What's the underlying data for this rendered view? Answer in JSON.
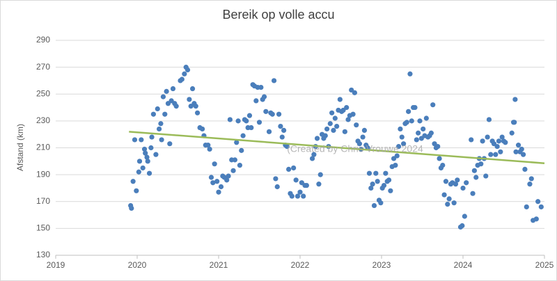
{
  "chart_data": {
    "type": "scatter",
    "title": "Bereik op volle accu",
    "ylabel": "Afstand (km)",
    "watermark": "(Created by Chris Vrouwe 2024",
    "xlim": [
      2019,
      2025
    ],
    "xticks": [
      2019,
      2020,
      2021,
      2022,
      2023,
      2024,
      2025
    ],
    "ylim": [
      130,
      290
    ],
    "yticks": [
      130,
      150,
      170,
      190,
      210,
      230,
      250,
      270,
      290
    ],
    "grid": true,
    "series": [
      {
        "name": "Afstand",
        "color": "#4a7ebb",
        "x": [
          2019.92,
          2019.93,
          2019.95,
          2019.97,
          2019.99,
          2020.02,
          2020.03,
          2020.05,
          2020.07,
          2020.09,
          2020.1,
          2020.12,
          2020.13,
          2020.15,
          2020.17,
          2020.18,
          2020.2,
          2020.23,
          2020.25,
          2020.27,
          2020.29,
          2020.3,
          2020.32,
          2020.34,
          2020.36,
          2020.38,
          2020.4,
          2020.42,
          2020.44,
          2020.46,
          2020.48,
          2020.53,
          2020.55,
          2020.58,
          2020.6,
          2020.62,
          2020.64,
          2020.66,
          2020.68,
          2020.7,
          2020.72,
          2020.74,
          2020.77,
          2020.8,
          2020.82,
          2020.84,
          2020.87,
          2020.89,
          2020.91,
          2020.93,
          2020.95,
          2020.98,
          2021.0,
          2021.03,
          2021.05,
          2021.07,
          2021.1,
          2021.12,
          2021.14,
          2021.16,
          2021.18,
          2021.2,
          2021.22,
          2021.24,
          2021.26,
          2021.28,
          2021.3,
          2021.32,
          2021.34,
          2021.36,
          2021.38,
          2021.4,
          2021.42,
          2021.44,
          2021.46,
          2021.48,
          2021.5,
          2021.52,
          2021.54,
          2021.56,
          2021.58,
          2021.62,
          2021.64,
          2021.66,
          2021.68,
          2021.7,
          2021.72,
          2021.74,
          2021.76,
          2021.78,
          2021.8,
          2021.82,
          2021.84,
          2021.86,
          2021.88,
          2021.9,
          2021.92,
          2021.95,
          2021.97,
          2022.0,
          2022.02,
          2022.04,
          2022.06,
          2022.08,
          2022.15,
          2022.17,
          2022.19,
          2022.21,
          2022.23,
          2022.25,
          2022.27,
          2022.29,
          2022.31,
          2022.33,
          2022.35,
          2022.37,
          2022.39,
          2022.41,
          2022.43,
          2022.45,
          2022.47,
          2022.49,
          2022.51,
          2022.53,
          2022.55,
          2022.57,
          2022.59,
          2022.61,
          2022.63,
          2022.65,
          2022.67,
          2022.69,
          2022.71,
          2022.73,
          2022.75,
          2022.77,
          2022.79,
          2022.81,
          2022.83,
          2022.85,
          2022.87,
          2022.89,
          2022.91,
          2022.93,
          2022.95,
          2022.97,
          2022.99,
          2023.01,
          2023.03,
          2023.05,
          2023.07,
          2023.09,
          2023.11,
          2023.13,
          2023.15,
          2023.17,
          2023.19,
          2023.21,
          2023.23,
          2023.25,
          2023.27,
          2023.29,
          2023.31,
          2023.33,
          2023.35,
          2023.37,
          2023.39,
          2023.41,
          2023.43,
          2023.45,
          2023.47,
          2023.49,
          2023.51,
          2023.53,
          2023.55,
          2023.57,
          2023.59,
          2023.61,
          2023.63,
          2023.65,
          2023.67,
          2023.69,
          2023.71,
          2023.73,
          2023.75,
          2023.77,
          2023.79,
          2023.81,
          2023.83,
          2023.85,
          2023.87,
          2023.89,
          2023.91,
          2023.93,
          2023.97,
          2023.99,
          2024.0,
          2024.02,
          2024.04,
          2024.1,
          2024.12,
          2024.14,
          2024.16,
          2024.18,
          2024.2,
          2024.22,
          2024.24,
          2024.26,
          2024.28,
          2024.3,
          2024.32,
          2024.34,
          2024.36,
          2024.38,
          2024.4,
          2024.42,
          2024.44,
          2024.46,
          2024.48,
          2024.5,
          2024.52,
          2024.6,
          2024.62,
          2024.63,
          2024.64,
          2024.65,
          2024.68,
          2024.7,
          2024.72,
          2024.74,
          2024.76,
          2024.78,
          2024.82,
          2024.84,
          2024.86,
          2024.9,
          2024.92,
          2024.96
        ],
        "values": [
          167,
          165,
          185,
          216,
          178,
          192,
          200,
          216,
          195,
          209,
          206,
          203,
          200,
          191,
          210,
          218,
          235,
          205,
          239,
          224,
          228,
          216,
          248,
          235,
          252,
          243,
          213,
          245,
          254,
          243,
          241,
          260,
          261,
          265,
          270,
          268,
          246,
          241,
          254,
          243,
          241,
          236,
          225,
          224,
          219,
          212,
          212,
          209,
          188,
          184,
          198,
          185,
          177,
          181,
          189,
          188,
          186,
          189,
          231,
          201,
          193,
          201,
          214,
          230,
          197,
          208,
          219,
          231,
          230,
          225,
          234,
          225,
          257,
          256,
          245,
          255,
          229,
          255,
          246,
          248,
          237,
          222,
          236,
          235,
          260,
          187,
          181,
          235,
          226,
          218,
          223,
          212,
          211,
          194,
          176,
          174,
          195,
          186,
          174,
          177,
          184,
          174,
          182,
          182,
          202,
          205,
          211,
          217,
          183,
          190,
          220,
          217,
          219,
          224,
          211,
          228,
          236,
          223,
          232,
          226,
          238,
          246,
          237,
          238,
          222,
          240,
          231,
          234,
          253,
          235,
          251,
          227,
          215,
          213,
          209,
          218,
          223,
          212,
          210,
          191,
          180,
          183,
          167,
          191,
          185,
          171,
          169,
          180,
          182,
          191,
          185,
          186,
          178,
          196,
          202,
          197,
          204,
          211,
          224,
          218,
          213,
          228,
          229,
          237,
          265,
          230,
          240,
          240,
          216,
          221,
          230,
          217,
          224,
          219,
          232,
          218,
          219,
          221,
          242,
          213,
          210,
          211,
          202,
          195,
          197,
          175,
          185,
          168,
          172,
          183,
          184,
          169,
          183,
          186,
          151,
          152,
          180,
          159,
          184,
          216,
          176,
          193,
          188,
          197,
          202,
          198,
          215,
          202,
          189,
          218,
          231,
          205,
          215,
          213,
          205,
          211,
          215,
          207,
          218,
          215,
          214,
          221,
          229,
          229,
          246,
          207,
          212,
          207,
          209,
          205,
          194,
          166,
          183,
          187,
          156,
          157,
          170,
          166
        ]
      }
    ],
    "trendline": {
      "color": "#9bbb59",
      "x": [
        2019.9,
        2025
      ],
      "y": [
        222,
        198.5
      ]
    }
  }
}
